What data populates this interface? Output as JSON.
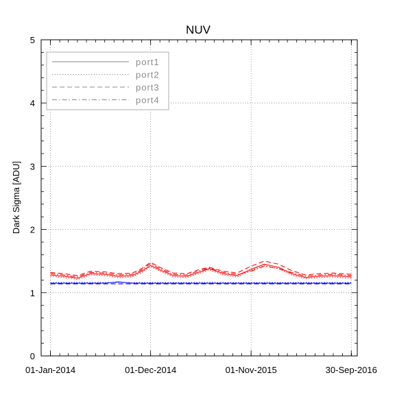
{
  "chart_data": {
    "type": "line",
    "title": "NUV",
    "xlabel": "",
    "ylabel": "Dark Sigma [ADU]",
    "ylim": [
      0,
      5
    ],
    "yticks": [
      0,
      1,
      2,
      3,
      4,
      5
    ],
    "xlim": [
      "2013-12-01",
      "2016-10-20"
    ],
    "xticks": [
      {
        "date": "2014-01-01",
        "label": "01-Jan-2014"
      },
      {
        "date": "2014-12-01",
        "label": "01-Dec-2014"
      },
      {
        "date": "2015-11-01",
        "label": "01-Nov-2015"
      },
      {
        "date": "2016-09-30",
        "label": "30-Sep-2016"
      }
    ],
    "grid": true,
    "legend_position": "top-left",
    "legend": [
      {
        "label": "port1",
        "dash": "solid"
      },
      {
        "label": "port2",
        "dash": "dotted"
      },
      {
        "label": "port3",
        "dash": "dashed"
      },
      {
        "label": "port4",
        "dash": "dashdot"
      }
    ],
    "x": [
      "2014-01-01",
      "2014-02-15",
      "2014-04-01",
      "2014-05-15",
      "2014-07-01",
      "2014-08-15",
      "2014-10-01",
      "2014-11-01",
      "2014-12-01",
      "2015-01-01",
      "2015-02-15",
      "2015-04-01",
      "2015-05-15",
      "2015-06-15",
      "2015-08-01",
      "2015-09-15",
      "2015-11-01",
      "2015-12-15",
      "2016-02-01",
      "2016-03-15",
      "2016-05-01",
      "2016-06-15",
      "2016-08-01",
      "2016-09-30"
    ],
    "series": [
      {
        "color": "#ff0000",
        "dash": "solid",
        "values": [
          1.28,
          1.26,
          1.23,
          1.3,
          1.29,
          1.26,
          1.27,
          1.34,
          1.43,
          1.36,
          1.27,
          1.26,
          1.33,
          1.38,
          1.3,
          1.27,
          1.37,
          1.45,
          1.4,
          1.3,
          1.24,
          1.26,
          1.27,
          1.25
        ]
      },
      {
        "color": "#ff0000",
        "dash": "dotted",
        "values": [
          1.26,
          1.24,
          1.21,
          1.28,
          1.27,
          1.24,
          1.25,
          1.32,
          1.41,
          1.34,
          1.25,
          1.24,
          1.31,
          1.36,
          1.28,
          1.25,
          1.35,
          1.43,
          1.38,
          1.28,
          1.22,
          1.24,
          1.25,
          1.23
        ]
      },
      {
        "color": "#ff0000",
        "dash": "dashed",
        "values": [
          1.32,
          1.3,
          1.27,
          1.34,
          1.33,
          1.3,
          1.31,
          1.38,
          1.48,
          1.4,
          1.31,
          1.3,
          1.37,
          1.4,
          1.34,
          1.31,
          1.42,
          1.5,
          1.45,
          1.35,
          1.28,
          1.3,
          1.31,
          1.29
        ]
      },
      {
        "color": "#ff0000",
        "dash": "dashdot",
        "values": [
          1.3,
          1.28,
          1.25,
          1.32,
          1.31,
          1.28,
          1.29,
          1.36,
          1.46,
          1.38,
          1.29,
          1.28,
          1.35,
          1.39,
          1.32,
          1.29,
          1.34,
          1.42,
          1.38,
          1.32,
          1.26,
          1.28,
          1.29,
          1.27
        ]
      },
      {
        "color": "#0000ff",
        "dash": "solid",
        "values": [
          1.15,
          1.15,
          1.15,
          1.15,
          1.15,
          1.17,
          1.15,
          1.15,
          1.15,
          1.15,
          1.15,
          1.15,
          1.15,
          1.15,
          1.15,
          1.15,
          1.15,
          1.15,
          1.15,
          1.15,
          1.15,
          1.15,
          1.15,
          1.15
        ]
      },
      {
        "color": "#0000ff",
        "dash": "dotted",
        "values": [
          1.16,
          1.16,
          1.16,
          1.16,
          1.16,
          1.16,
          1.16,
          1.16,
          1.16,
          1.16,
          1.16,
          1.16,
          1.16,
          1.16,
          1.16,
          1.16,
          1.16,
          1.16,
          1.16,
          1.16,
          1.16,
          1.16,
          1.16,
          1.16
        ]
      },
      {
        "color": "#0000ff",
        "dash": "dashed",
        "values": [
          1.14,
          1.14,
          1.14,
          1.14,
          1.14,
          1.14,
          1.14,
          1.14,
          1.14,
          1.14,
          1.14,
          1.14,
          1.14,
          1.14,
          1.14,
          1.14,
          1.14,
          1.14,
          1.14,
          1.14,
          1.14,
          1.14,
          1.14,
          1.14
        ]
      }
    ]
  }
}
